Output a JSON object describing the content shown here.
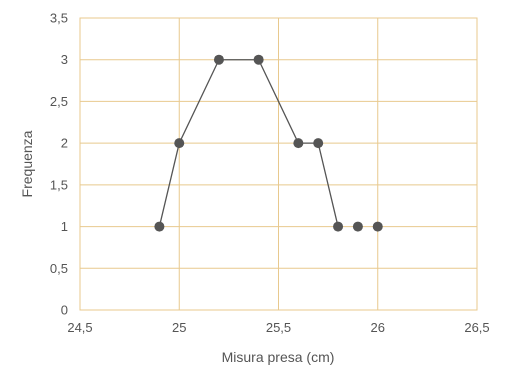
{
  "chart_data": {
    "type": "line",
    "xlabel": "Misura presa (cm)",
    "ylabel": "Frequenza",
    "xlim": [
      24.5,
      26.5
    ],
    "ylim": [
      0,
      3.5
    ],
    "x_ticks": [
      24.5,
      25,
      25.5,
      26,
      26.5
    ],
    "x_tick_labels": [
      "24,5",
      "25",
      "25,5",
      "26",
      "26,5"
    ],
    "y_ticks": [
      0,
      0.5,
      1,
      1.5,
      2,
      2.5,
      3,
      3.5
    ],
    "y_tick_labels": [
      "0",
      "0,5",
      "1",
      "1,5",
      "2",
      "2,5",
      "3",
      "3,5"
    ],
    "grid": true,
    "series": [
      {
        "x": [
          24.9,
          25.0,
          25.2,
          25.4,
          25.6,
          25.7,
          25.8,
          25.9,
          26.0
        ],
        "values": [
          1,
          2,
          3,
          3,
          2,
          2,
          1,
          1,
          1
        ],
        "line_connects_points": 7
      }
    ],
    "colors": {
      "grid": "#e8c98e",
      "plot_border": "#e8c98e",
      "line": "#555555",
      "marker": "#555555"
    }
  }
}
